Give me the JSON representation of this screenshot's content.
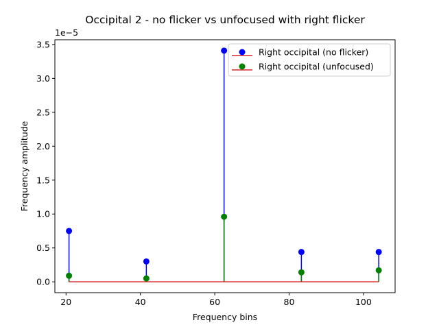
{
  "chart_data": {
    "type": "stem",
    "title": "Occipital 2 - no flicker vs unfocused with right flicker",
    "xlabel": "Frequency bins",
    "ylabel": "Frequency amplitude",
    "y_exponent_label": "1e−5",
    "y_scale": 1e-05,
    "xlim": [
      17,
      108.5
    ],
    "ylim": [
      -0.16,
      3.57
    ],
    "x_ticks": [
      20,
      40,
      60,
      80,
      100
    ],
    "y_ticks": [
      0.0,
      0.5,
      1.0,
      1.5,
      2.0,
      2.5,
      3.0,
      3.5
    ],
    "x_tick_labels": [
      "20",
      "40",
      "60",
      "80",
      "100"
    ],
    "y_tick_labels": [
      "0.0",
      "0.5",
      "1.0",
      "1.5",
      "2.0",
      "2.5",
      "3.0",
      "3.5"
    ],
    "baseline": {
      "value": 0,
      "color": "#d62728"
    },
    "legend_position": "upper-right",
    "series": [
      {
        "name": "Right occipital (no flicker)",
        "color": "#0000ff",
        "x": [
          20.8,
          41.6,
          62.5,
          83.3,
          104.1
        ],
        "values": [
          0.75,
          0.3,
          3.41,
          0.44,
          0.44
        ]
      },
      {
        "name": "Right occipital (unfocused)",
        "color": "#008000",
        "x": [
          20.8,
          41.6,
          62.5,
          83.3,
          104.1
        ],
        "values": [
          0.09,
          0.05,
          0.96,
          0.14,
          0.17
        ]
      }
    ]
  }
}
